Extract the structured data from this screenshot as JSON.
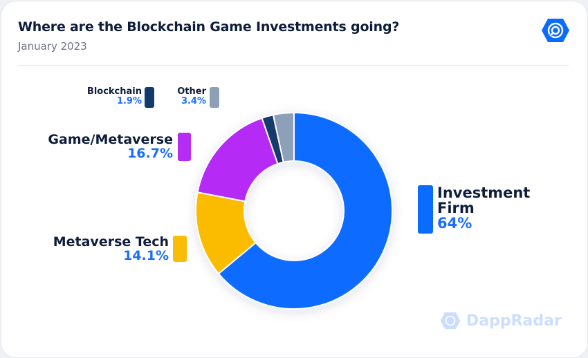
{
  "header": {
    "title": "Where are the Blockchain Game Investments going?",
    "subtitle": "January 2023"
  },
  "watermark": "DappRadar",
  "logo_icon": "dappradar-hexagon-icon",
  "chart_data": {
    "type": "pie",
    "variant": "donut",
    "title": "Where are the Blockchain Game Investments going?",
    "subtitle": "January 2023",
    "start": "top, clockwise",
    "slices": [
      {
        "label": "Investment Firm",
        "value": 64,
        "display": "64%",
        "color": "#0a6cff"
      },
      {
        "label": "Metaverse Tech",
        "value": 14.1,
        "display": "14.1%",
        "color": "#fbbc05"
      },
      {
        "label": "Game/Metaverse",
        "value": 16.7,
        "display": "16.7%",
        "color": "#b52cf5"
      },
      {
        "label": "Blockchain",
        "value": 1.9,
        "display": "1.9%",
        "color": "#123a6b"
      },
      {
        "label": "Other",
        "value": 3.4,
        "display": "3.4%",
        "color": "#8ea0b8"
      }
    ]
  }
}
